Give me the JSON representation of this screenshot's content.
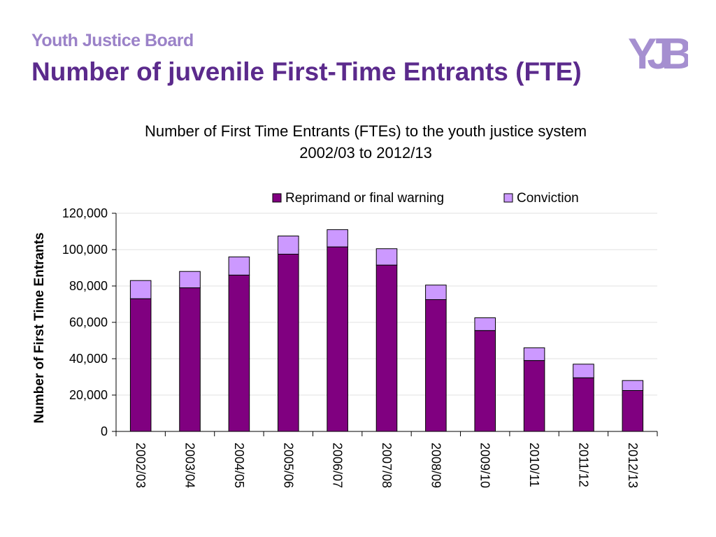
{
  "header": {
    "org_name": "Youth Justice Board",
    "page_title": "Number of juvenile First-Time Entrants (FTE)"
  },
  "logo": {
    "icon": "yjb-logo-icon",
    "text": "YJB"
  },
  "colors": {
    "title": "#5b2a8c",
    "org_name": "#9b82c8",
    "reprimand": "#800080",
    "conviction": "#cc99ff",
    "logo_light": "#a58fd0",
    "logo_dark": "#5b2a8c"
  },
  "chart_data": {
    "type": "bar",
    "stacked": true,
    "title": "Number of First Time Entrants (FTEs) to the youth justice system 2002/03 to 2012/13",
    "xlabel": "",
    "ylabel": "Number of First Time Entrants",
    "ylim": [
      0,
      120000
    ],
    "yticks": [
      0,
      20000,
      40000,
      60000,
      80000,
      100000,
      120000
    ],
    "ytick_labels": [
      "0",
      "20,000",
      "40,000",
      "60,000",
      "80,000",
      "100,000",
      "120,000"
    ],
    "grid": true,
    "legend_position": "top",
    "categories": [
      "2002/03",
      "2003/04",
      "2004/05",
      "2005/06",
      "2006/07",
      "2007/08",
      "2008/09",
      "2009/10",
      "2010/11",
      "2011/12",
      "2012/13"
    ],
    "series": [
      {
        "name": "Reprimand or final warning",
        "values": [
          73000,
          79000,
          86000,
          97500,
          101500,
          91500,
          72500,
          55500,
          39000,
          29500,
          22500
        ]
      },
      {
        "name": "Conviction",
        "values": [
          10000,
          9000,
          10000,
          10000,
          9500,
          9000,
          8000,
          7000,
          7000,
          7500,
          5500
        ]
      }
    ]
  }
}
